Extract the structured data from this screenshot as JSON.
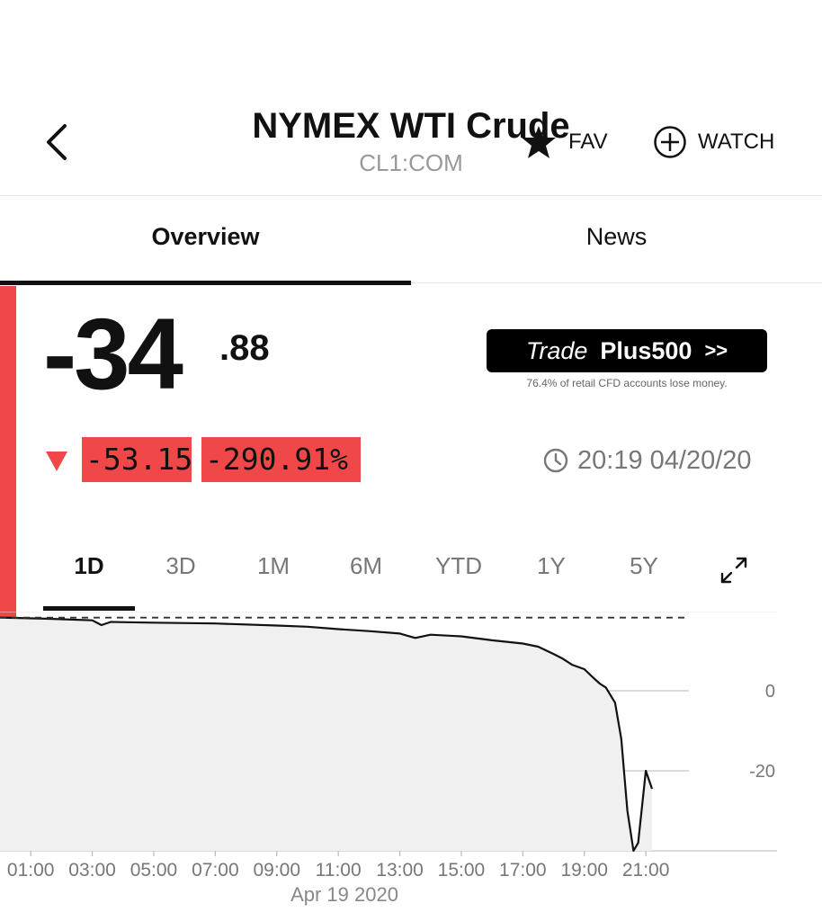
{
  "header": {
    "back_icon": "chevron-left-icon",
    "title": "NYMEX WTI Crude",
    "ticker": "CL1:COM",
    "fav_label": "FAV",
    "watch_label": "WATCH"
  },
  "tabs": [
    {
      "label": "Overview",
      "active": true
    },
    {
      "label": "News",
      "active": false
    }
  ],
  "price": {
    "integer_part": "-34",
    "decimal_part": ".88",
    "change_abs": "-53.15",
    "change_pct": "-290.91%",
    "direction": "down",
    "timestamp": "20:19 04/20/20"
  },
  "ad": {
    "trade_label": "Trade",
    "brand": "Plus500",
    "arrows": ">>",
    "disclaimer": "76.4% of retail CFD accounts lose money."
  },
  "ranges": [
    {
      "label": "1D",
      "active": true
    },
    {
      "label": "3D",
      "active": false
    },
    {
      "label": "1M",
      "active": false
    },
    {
      "label": "6M",
      "active": false
    },
    {
      "label": "YTD",
      "active": false
    },
    {
      "label": "1Y",
      "active": false
    },
    {
      "label": "5Y",
      "active": false
    }
  ],
  "colors": {
    "accent_red": "#f04848",
    "text_dark": "#111111",
    "text_grey": "#777777",
    "chart_fill": "#f0f0f0"
  },
  "chart_data": {
    "type": "area",
    "date_label": "Apr 19 2020",
    "x_ticks": [
      "01:00",
      "03:00",
      "05:00",
      "07:00",
      "09:00",
      "11:00",
      "13:00",
      "15:00",
      "17:00",
      "19:00",
      "21:00"
    ],
    "y_ticks": [
      0,
      -20
    ],
    "previous_close": 18.27,
    "ylim": [
      -40,
      20
    ],
    "series": [
      {
        "x": [
          0,
          1.5,
          3,
          3.3,
          3.6,
          5,
          7,
          9,
          10,
          11,
          12,
          13,
          13.5,
          14,
          15,
          16,
          17,
          17.5,
          18,
          18.3,
          18.6,
          19,
          19.3,
          19.5,
          19.7,
          20,
          20.2,
          20.4,
          20.6,
          20.75,
          21,
          21.2
        ],
        "y": [
          18.3,
          18.0,
          17.6,
          16.4,
          17.2,
          17.0,
          16.8,
          16.3,
          16.0,
          15.4,
          14.9,
          14.3,
          13.2,
          14.0,
          13.6,
          12.6,
          11.8,
          11.0,
          9.2,
          8.0,
          6.5,
          5.4,
          3.2,
          1.8,
          0.8,
          -3.0,
          -12.0,
          -30.0,
          -40.0,
          -38.0,
          -20.0,
          -24.5
        ]
      }
    ]
  }
}
